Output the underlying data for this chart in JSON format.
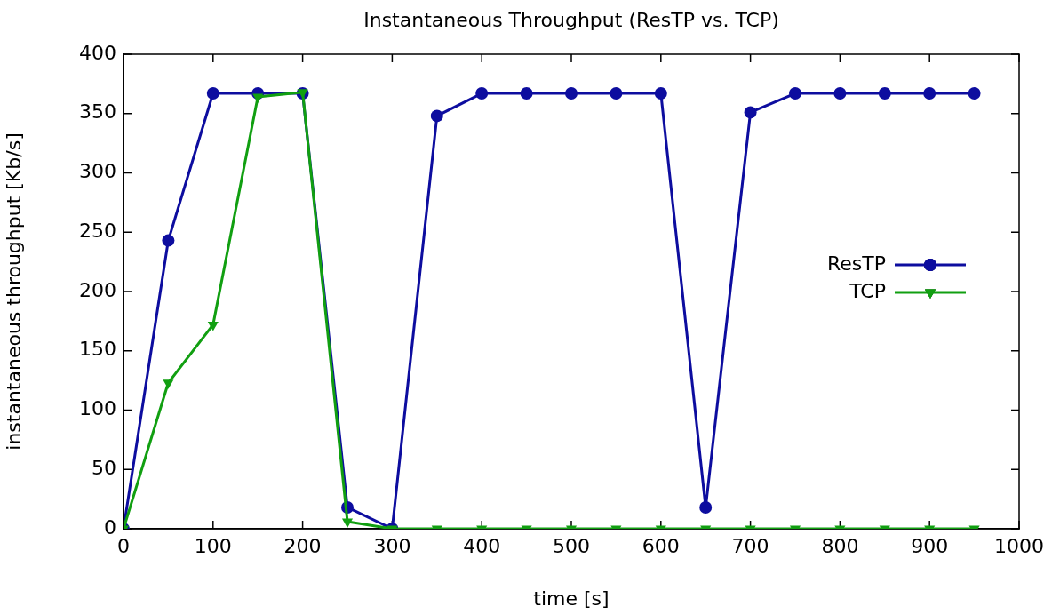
{
  "chart_data": {
    "type": "line",
    "title": "Instantaneous Throughput (ResTP vs. TCP)",
    "xlabel": "time [s]",
    "ylabel": "instantaneous throughput [Kb/s]",
    "x": [
      0,
      50,
      100,
      150,
      200,
      250,
      300,
      350,
      400,
      450,
      500,
      550,
      600,
      650,
      700,
      750,
      800,
      850,
      900,
      950
    ],
    "series": [
      {
        "name": "ResTP",
        "color": "#0d0d9f",
        "marker": "circle",
        "values": [
          0,
          243,
          367,
          367,
          367,
          18,
          0,
          348,
          367,
          367,
          367,
          367,
          367,
          18,
          351,
          367,
          367,
          367,
          367,
          367
        ]
      },
      {
        "name": "TCP",
        "color": "#119f11",
        "marker": "triangle",
        "values": [
          0,
          123,
          172,
          364,
          368,
          6,
          0,
          0,
          0,
          0,
          0,
          0,
          0,
          0,
          0,
          0,
          0,
          0,
          0,
          0
        ]
      }
    ],
    "xlim": [
      0,
      1000
    ],
    "xticks": [
      0,
      100,
      200,
      300,
      400,
      500,
      600,
      700,
      800,
      900,
      1000
    ],
    "ylim": [
      0,
      400
    ],
    "yticks": [
      0,
      50,
      100,
      150,
      200,
      250,
      300,
      350,
      400
    ],
    "legend": "right",
    "grid": false,
    "line_style": "solid"
  }
}
